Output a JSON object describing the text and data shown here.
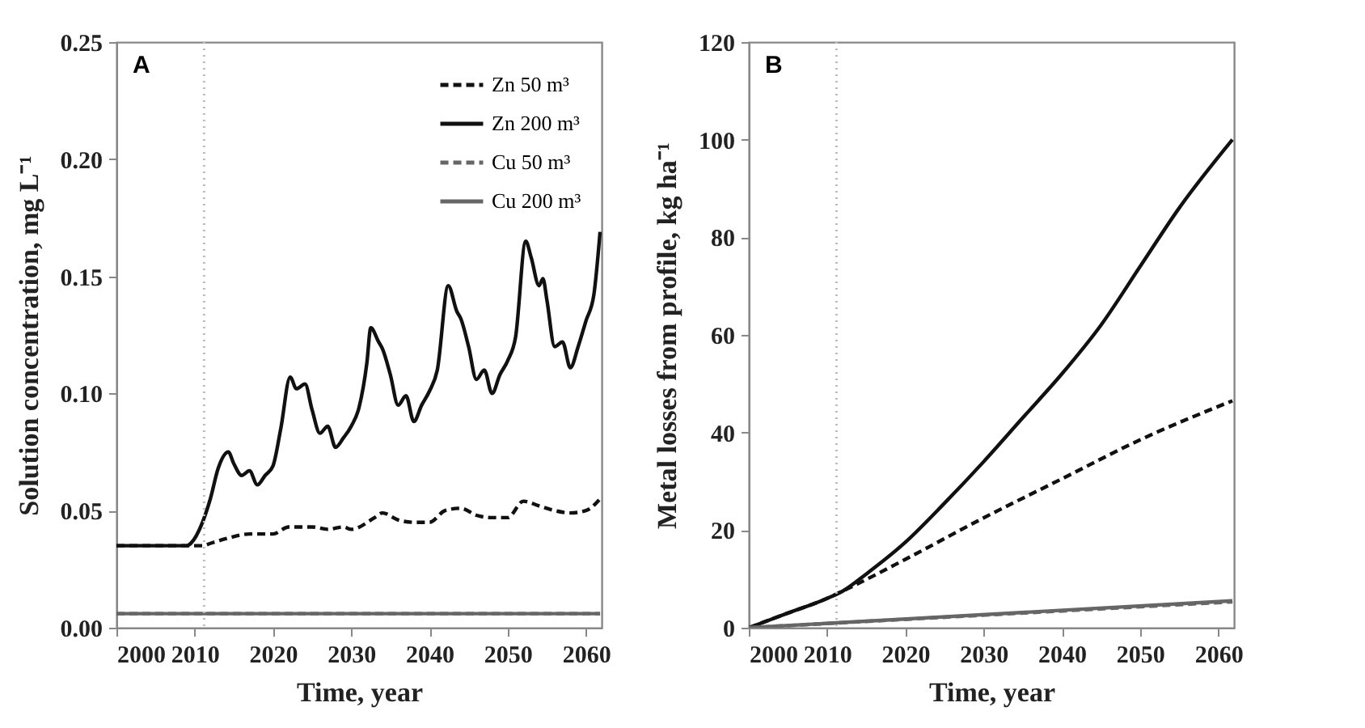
{
  "chart_data": [
    {
      "type": "line",
      "xlabel": "Time, year",
      "ylabel": "Solution concentration, mg L⁻¹",
      "annotations": [
        "A"
      ],
      "xlim": [
        2000,
        2062
      ],
      "xticks": [
        2000,
        2010,
        2020,
        2030,
        2040,
        2050,
        2060
      ],
      "ylim": [
        0,
        0.25
      ],
      "yticks": [
        {
          "value": 0,
          "label": "0.00"
        },
        {
          "value": 0.05,
          "label": "0.05"
        },
        {
          "value": 0.1,
          "label": "0.10"
        },
        {
          "value": 0.15,
          "label": "0.15"
        },
        {
          "value": 0.2,
          "label": "0.20"
        },
        {
          "value": 0.25,
          "label": "0.25"
        }
      ],
      "grid": false,
      "legend": "top right",
      "ref_lines": [
        {
          "axis": "x",
          "value": 2011.2,
          "color": "#bbbbbb",
          "line_style": "dotted"
        }
      ],
      "series": [
        {
          "name": "Zn 50 m³",
          "color": "#111111",
          "line_style": "dashed",
          "x": [
            2000,
            2005,
            2009,
            2011,
            2012,
            2014,
            2017,
            2020,
            2022,
            2025,
            2027,
            2029,
            2030,
            2033,
            2034,
            2036,
            2038,
            2040,
            2042,
            2044,
            2046,
            2048,
            2050,
            2052,
            2054,
            2056,
            2058,
            2060,
            2061.8
          ],
          "values": [
            0.035,
            0.035,
            0.035,
            0.035,
            0.036,
            0.038,
            0.04,
            0.04,
            0.043,
            0.043,
            0.042,
            0.043,
            0.042,
            0.047,
            0.049,
            0.046,
            0.045,
            0.045,
            0.05,
            0.051,
            0.048,
            0.047,
            0.047,
            0.054,
            0.052,
            0.05,
            0.049,
            0.05,
            0.055
          ]
        },
        {
          "name": "Zn 200 m³",
          "color": "#111111",
          "line_style": "solid",
          "x": [
            2000,
            2005,
            2009,
            2009.5,
            2011,
            2012,
            2013,
            2014.3,
            2015,
            2016,
            2017,
            2018,
            2019,
            2020,
            2021,
            2022.2,
            2023,
            2024.1,
            2025,
            2026,
            2027,
            2028,
            2029,
            2030,
            2031,
            2032,
            2032.5,
            2033.5,
            2034,
            2035,
            2036,
            2037,
            2038,
            2039,
            2040,
            2041,
            2042.4,
            2043.5,
            2044,
            2045,
            2046,
            2047,
            2048,
            2049,
            2050,
            2051,
            2052.3,
            2053,
            2054,
            2054.5,
            2055,
            2056,
            2057,
            2058,
            2059,
            2060,
            2061,
            2061.8
          ],
          "values": [
            0.035,
            0.035,
            0.035,
            0.036,
            0.045,
            0.055,
            0.068,
            0.075,
            0.07,
            0.065,
            0.067,
            0.061,
            0.065,
            0.069,
            0.085,
            0.107,
            0.102,
            0.104,
            0.093,
            0.083,
            0.086,
            0.077,
            0.081,
            0.086,
            0.094,
            0.113,
            0.128,
            0.122,
            0.119,
            0.108,
            0.095,
            0.099,
            0.088,
            0.095,
            0.101,
            0.11,
            0.146,
            0.135,
            0.132,
            0.12,
            0.106,
            0.11,
            0.1,
            0.108,
            0.114,
            0.124,
            0.165,
            0.158,
            0.146,
            0.149,
            0.14,
            0.12,
            0.122,
            0.111,
            0.12,
            0.131,
            0.142,
            0.169
          ]
        },
        {
          "name": "Cu 50 m³",
          "color": "#666666",
          "line_style": "dashed",
          "x": [
            2000,
            2061.8
          ],
          "values": [
            0.006,
            0.006
          ]
        },
        {
          "name": "Cu 200 m³",
          "color": "#666666",
          "line_style": "solid",
          "x": [
            2000,
            2061.8
          ],
          "values": [
            0.006,
            0.006
          ]
        }
      ]
    },
    {
      "type": "line",
      "xlabel": "Time, year",
      "ylabel": "Metal losses from profile, kg ha⁻¹",
      "annotations": [
        "B"
      ],
      "xlim": [
        2000,
        2062
      ],
      "xticks": [
        2000,
        2010,
        2020,
        2030,
        2040,
        2050,
        2060
      ],
      "ylim": [
        0,
        120
      ],
      "yticks": [
        0,
        20,
        40,
        60,
        80,
        100,
        120
      ],
      "grid": false,
      "ref_lines": [
        {
          "axis": "x",
          "value": 2011.2,
          "color": "#bbbbbb",
          "line_style": "dotted"
        }
      ],
      "series": [
        {
          "color": "#111111",
          "line_style": "dashed",
          "x": [
            2000,
            2005,
            2010,
            2012,
            2020,
            2030,
            2040,
            2050,
            2061.8
          ],
          "values": [
            0,
            3,
            6,
            7.5,
            14,
            22.5,
            30.5,
            38.5,
            46.5
          ]
        },
        {
          "color": "#111111",
          "line_style": "solid",
          "x": [
            2000,
            2005,
            2010,
            2012,
            2015,
            2020,
            2025,
            2030,
            2035,
            2040,
            2045,
            2050,
            2055,
            2061.8
          ],
          "values": [
            0,
            3,
            6,
            7.5,
            11,
            17.5,
            25.5,
            34,
            43,
            52,
            62,
            74,
            86,
            100
          ]
        },
        {
          "color": "#666666",
          "line_style": "dashed",
          "x": [
            2000,
            2061.8
          ],
          "values": [
            0,
            5.3
          ]
        },
        {
          "color": "#666666",
          "line_style": "solid",
          "x": [
            2000,
            2061.8
          ],
          "values": [
            0,
            5.5
          ]
        }
      ]
    }
  ]
}
